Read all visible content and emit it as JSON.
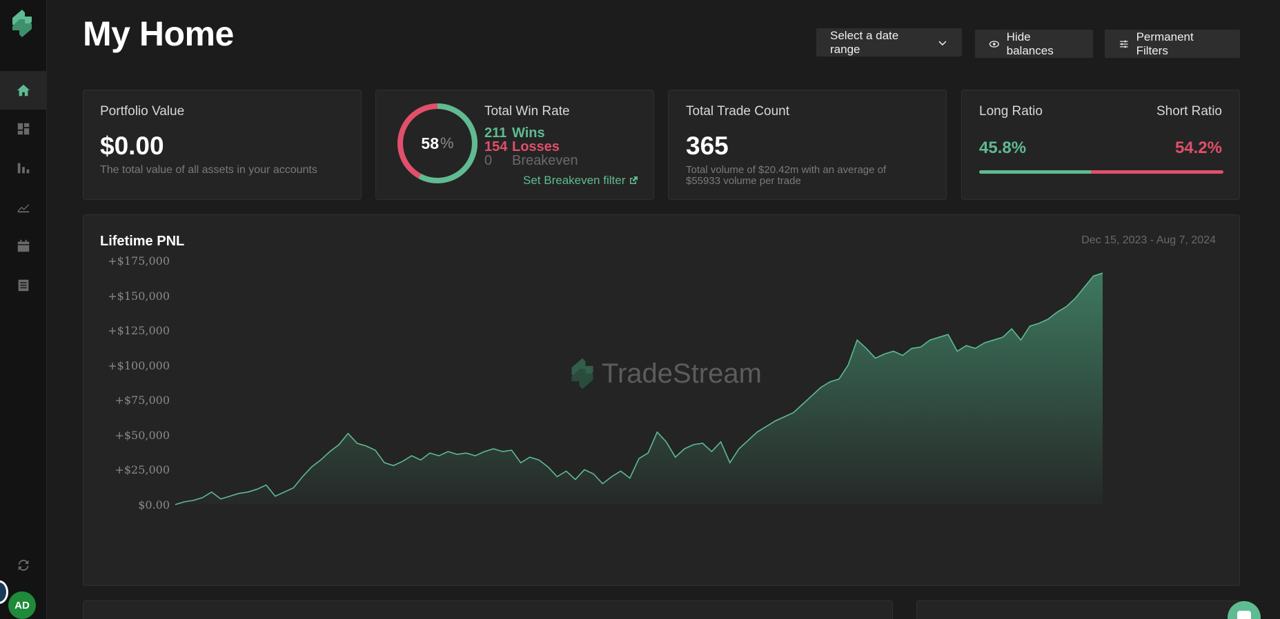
{
  "brand": {
    "name": "TradeStream",
    "accent": "#5fbb92",
    "loss": "#e0506a"
  },
  "sidebar": {
    "items": [
      {
        "icon": "home-icon",
        "active": true
      },
      {
        "icon": "dashboard-icon",
        "active": false
      },
      {
        "icon": "bar-chart-icon",
        "active": false
      },
      {
        "icon": "line-chart-icon",
        "active": false
      },
      {
        "icon": "calendar-icon",
        "active": false
      },
      {
        "icon": "journal-icon",
        "active": false
      }
    ],
    "sync_icon": "refresh-icon",
    "avatar_initials": "AD"
  },
  "header": {
    "title": "My Home",
    "date_range_label": "Select a date range",
    "hide_balances_label": "Hide balances",
    "permanent_filters_label": "Permanent Filters"
  },
  "portfolio": {
    "label": "Portfolio Value",
    "value": "$0.00",
    "description": "The total value of all assets in your accounts"
  },
  "win_rate": {
    "label": "Total Win Rate",
    "percent": "58",
    "percent_sign": "%",
    "win_fraction": 0.578,
    "wins_count": "211",
    "wins_label": "Wins",
    "losses_count": "154",
    "losses_label": "Losses",
    "breakeven_count": "0",
    "breakeven_label": "Breakeven",
    "filter_link": "Set Breakeven filter"
  },
  "trade_count": {
    "label": "Total Trade Count",
    "value": "365",
    "description_line1": "Total volume of $20.42m with an average of",
    "description_line2": "$55933 volume per trade"
  },
  "ratio": {
    "long_label": "Long Ratio",
    "short_label": "Short Ratio",
    "long_value": "45.8%",
    "short_value": "54.2%",
    "long_fraction": 0.458
  },
  "pnl": {
    "title": "Lifetime PNL",
    "range": "Dec 15, 2023 - Aug 7, 2024",
    "watermark": "TradeStream"
  },
  "chart_data": {
    "type": "area",
    "title": "Lifetime PNL",
    "ylim": [
      0,
      175000
    ],
    "y_ticks": [
      "+$175,000",
      "+$150,000",
      "+$125,000",
      "+$100,000",
      "+$75,000",
      "+$50,000",
      "+$25,000",
      "$0.00"
    ],
    "x_range": [
      "Dec 15, 2023",
      "Aug 7, 2024"
    ],
    "values": [
      0,
      2000,
      3000,
      5000,
      9000,
      4000,
      6000,
      8000,
      9000,
      11000,
      14000,
      6000,
      9000,
      12000,
      20000,
      27000,
      32000,
      38000,
      43000,
      51000,
      44000,
      42000,
      39000,
      30000,
      28000,
      31000,
      35000,
      32000,
      37000,
      35000,
      38000,
      36000,
      37000,
      35000,
      38000,
      40000,
      38000,
      39000,
      30000,
      34000,
      32000,
      27000,
      20000,
      24000,
      18000,
      25000,
      22000,
      15000,
      20000,
      24000,
      19000,
      33000,
      37000,
      52000,
      45000,
      34000,
      40000,
      43000,
      44000,
      38000,
      45000,
      30000,
      40000,
      46000,
      52000,
      56000,
      60000,
      63000,
      66000,
      72000,
      78000,
      84000,
      88000,
      90000,
      100000,
      118000,
      112000,
      105000,
      108000,
      110000,
      107000,
      112000,
      113000,
      118000,
      120000,
      122000,
      110000,
      114000,
      112000,
      116000,
      118000,
      120000,
      126000,
      118000,
      128000,
      130000,
      133000,
      138000,
      142000,
      148000,
      156000,
      164000,
      166000
    ]
  }
}
